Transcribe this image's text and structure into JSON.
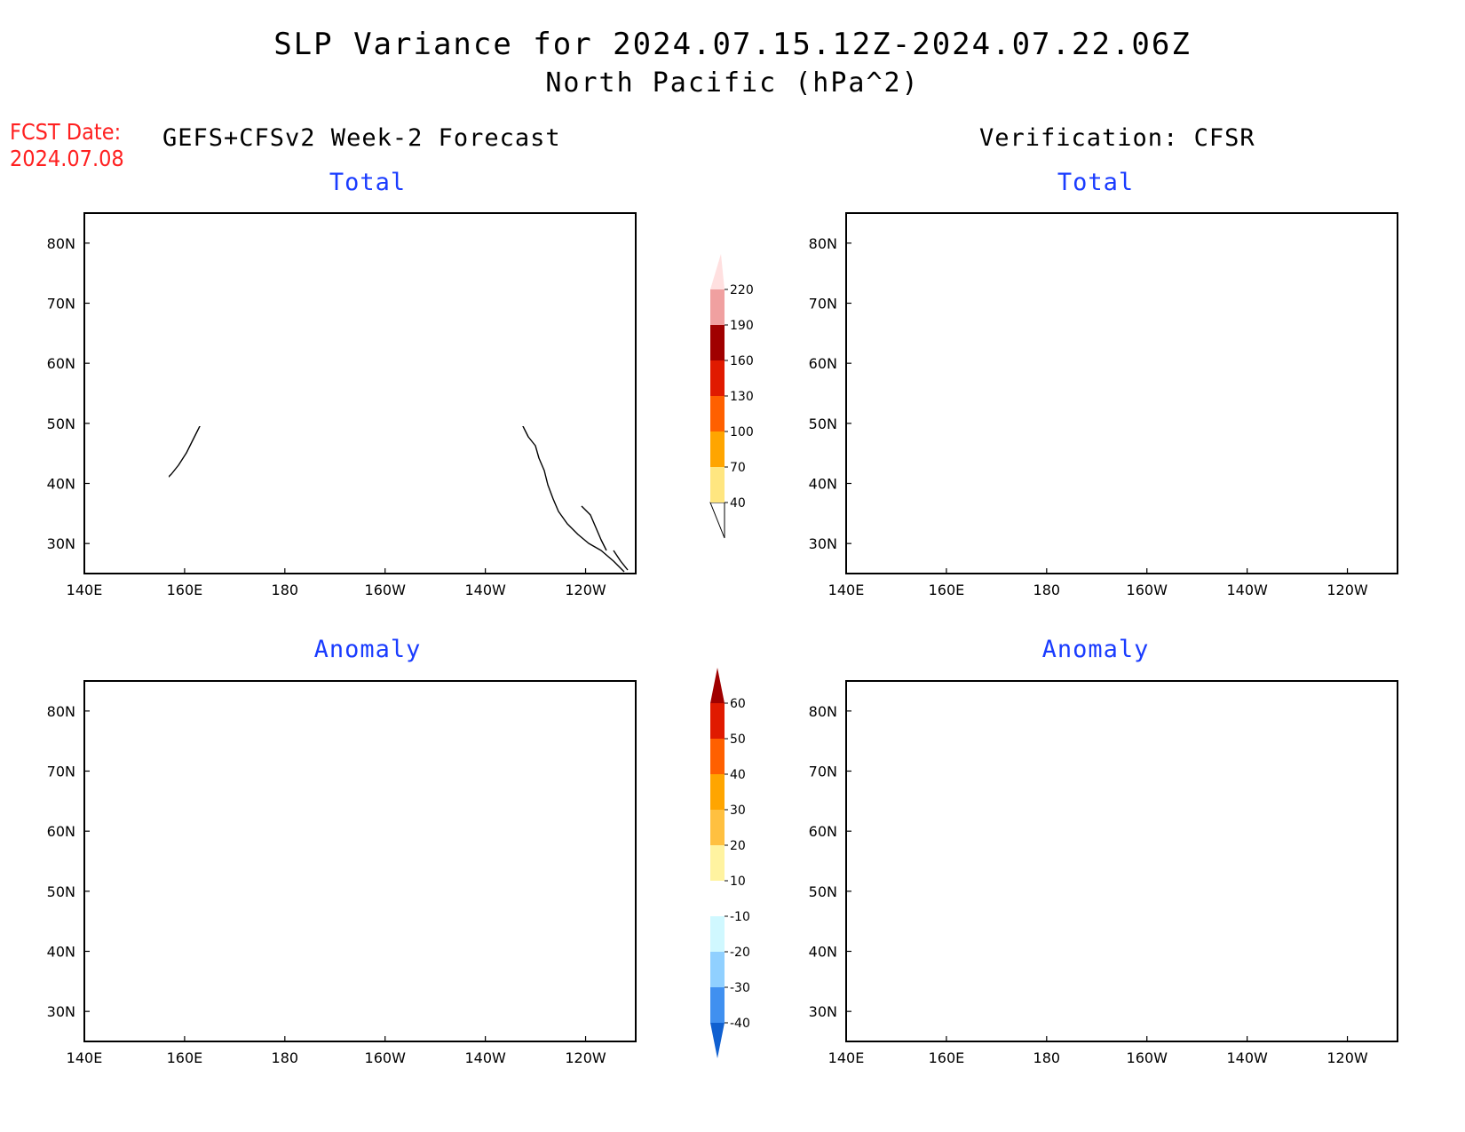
{
  "header": {
    "title_line1": "SLP Variance for 2024.07.15.12Z-2024.07.22.06Z",
    "title_line2": "North Pacific (hPa^2)",
    "fcst_label": "FCST Date:",
    "fcst_date": "2024.07.08",
    "left_column_title": "GEFS+CFSv2 Week-2 Forecast",
    "right_column_title": "Verification: CFSR"
  },
  "panels": [
    {
      "id": "forecast-total",
      "title": "Total"
    },
    {
      "id": "verification-total",
      "title": "Total"
    },
    {
      "id": "forecast-anomaly",
      "title": "Anomaly"
    },
    {
      "id": "verification-anomaly",
      "title": "Anomaly"
    }
  ],
  "map_axes": {
    "lon_labels": [
      "140E",
      "160E",
      "180",
      "160W",
      "140W",
      "120W"
    ],
    "lat_labels": [
      "80N",
      "70N",
      "60N",
      "50N",
      "40N",
      "30N"
    ],
    "lon_range": [
      140,
      250
    ],
    "lat_range": [
      25,
      85
    ]
  },
  "colorbars": {
    "total": {
      "levels": [
        "40",
        "70",
        "100",
        "130",
        "160",
        "190",
        "220"
      ],
      "colors": [
        "#ffe680",
        "#ffa500",
        "#ff6000",
        "#e01a00",
        "#a00000",
        "#f0a0a0",
        "#ffe0e0"
      ]
    },
    "anomaly": {
      "levels": [
        "60",
        "50",
        "40",
        "30",
        "20",
        "10",
        "-10",
        "-20",
        "-30",
        "-40"
      ],
      "colors": [
        "#a00000",
        "#e01a00",
        "#ff6000",
        "#ffa500",
        "#ffc040",
        "#fff3a0",
        "#ffffff",
        "#d0f8ff",
        "#90d0ff",
        "#4090f0",
        "#1060d0"
      ]
    }
  },
  "colors": {
    "light_yellow": "#ffe680",
    "pale_yellow": "#fff3a0",
    "orange": "#ffb030",
    "dark_orange": "#ff9000",
    "light_blue": "#d0f8ff",
    "mid_blue": "#90d0ff",
    "title_blue": "#1a3cff",
    "fcst_red": "#ff2020"
  }
}
